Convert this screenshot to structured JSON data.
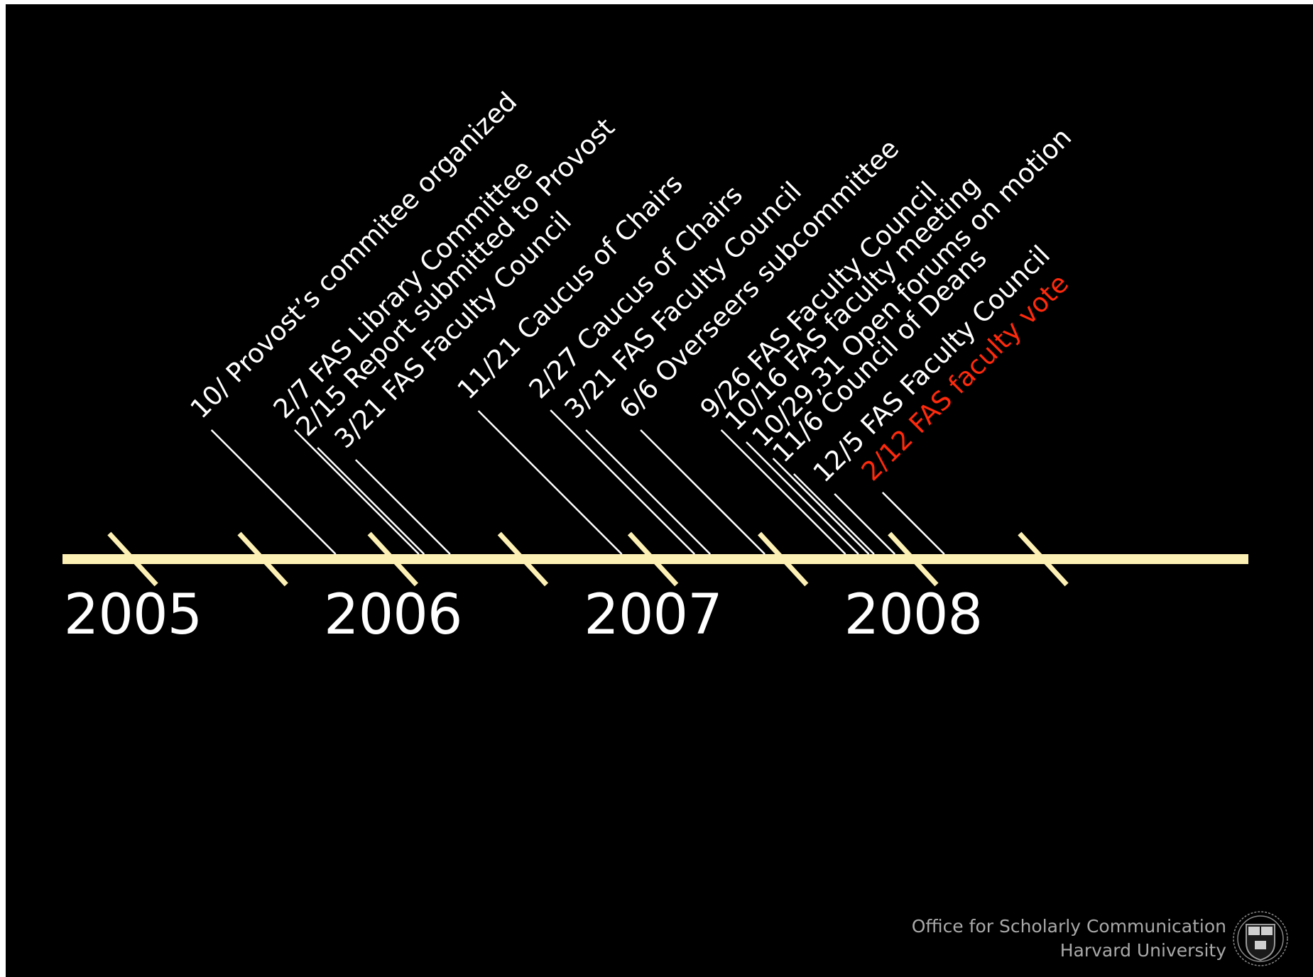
{
  "colors": {
    "background": "#000000",
    "axis": "#fdf0b4",
    "leader": "#ffffff",
    "event_text": "#ffffff",
    "highlight_text": "#ff2a0c",
    "footer_text": "#a9a9a9"
  },
  "axis": {
    "start_year": 2005,
    "end_year": 2008.9,
    "tick_interval_years": 0.5
  },
  "years": [
    {
      "label": "2005",
      "value": 2005
    },
    {
      "label": "2006",
      "value": 2006
    },
    {
      "label": "2007",
      "value": 2007
    },
    {
      "label": "2008",
      "value": 2008
    }
  ],
  "events": [
    {
      "label": "10/ Provost’s commitee organized",
      "date": 2005.78,
      "highlight": false
    },
    {
      "label": "2/7 FAS Library Committee",
      "date": 2006.1,
      "highlight": false
    },
    {
      "label": "2/15 Report submitted to Provost",
      "date": 2006.12,
      "highlight": false
    },
    {
      "label": "3/21 FAS Faculty Council",
      "date": 2006.22,
      "highlight": false
    },
    {
      "label": "11/21 Caucus of Chairs",
      "date": 2006.88,
      "highlight": false
    },
    {
      "label": "2/27 Caucus of Chairs",
      "date": 2007.16,
      "highlight": false
    },
    {
      "label": "3/21 FAS Faculty Council",
      "date": 2007.22,
      "highlight": false
    },
    {
      "label": "6/6 Overseers subcommittee",
      "date": 2007.43,
      "highlight": false
    },
    {
      "label": "9/26 FAS Faculty Council",
      "date": 2007.74,
      "highlight": false
    },
    {
      "label": "10/16 FAS faculty meeting",
      "date": 2007.79,
      "highlight": false
    },
    {
      "label": "10/29,31 Open forums on motion",
      "date": 2007.83,
      "highlight": false
    },
    {
      "label": "11/6 Council of Deans",
      "date": 2007.85,
      "highlight": false
    },
    {
      "label": "12/5 FAS Faculty Council",
      "date": 2007.93,
      "highlight": false
    },
    {
      "label": "2/12 FAS faculty vote",
      "date": 2008.12,
      "highlight": true
    }
  ],
  "footer": {
    "line1": "Office for Scholarly Communication",
    "line2": "Harvard University",
    "seal": "harvard-veritas-seal"
  }
}
